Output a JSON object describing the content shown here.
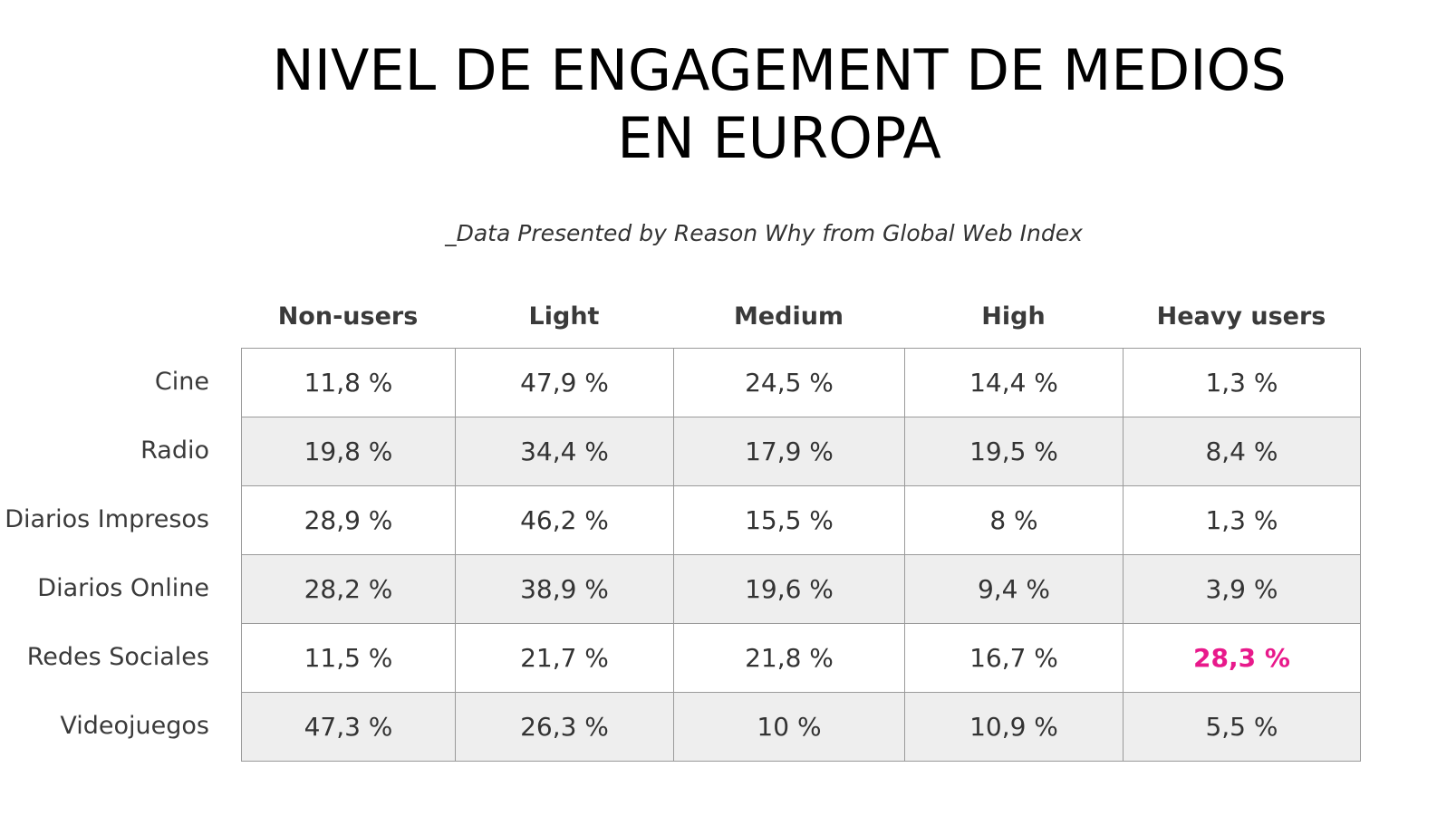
{
  "title_line1": "NIVEL DE ENGAGEMENT DE MEDIOS",
  "title_line2": "EN EUROPA",
  "subtitle": "_Data Presented by Reason Why from Global Web Index",
  "colors": {
    "highlight": "#e8198b",
    "shaded_row": "#eeeeee",
    "border": "#9a9a9a"
  },
  "chart_data": {
    "type": "table",
    "columns": [
      "Non-users",
      "Light",
      "Medium",
      "High",
      "Heavy users"
    ],
    "rows": [
      {
        "label": "Cine",
        "values": [
          "11,8 %",
          "47,9 %",
          "24,5 %",
          "14,4 %",
          "1,3 %"
        ]
      },
      {
        "label": "Radio",
        "values": [
          "19,8 %",
          "34,4 %",
          "17,9 %",
          "19,5 %",
          "8,4 %"
        ]
      },
      {
        "label": "Diarios Impresos",
        "values": [
          "28,9 %",
          "46,2 %",
          "15,5 %",
          "8 %",
          "1,3 %"
        ]
      },
      {
        "label": "Diarios Online",
        "values": [
          "28,2 %",
          "38,9 %",
          "19,6 %",
          "9,4 %",
          "3,9 %"
        ]
      },
      {
        "label": "Redes Sociales",
        "values": [
          "11,5 %",
          "21,7 %",
          "21,8 %",
          "16,7 %",
          "28,3 %"
        ]
      },
      {
        "label": "Videojuegos",
        "values": [
          "47,3 %",
          "26,3 %",
          "10 %",
          "10,9 %",
          "5,5 %"
        ]
      }
    ],
    "highlighted_cell": {
      "row": "Redes Sociales",
      "column": "Heavy users",
      "value": "28,3 %"
    }
  }
}
